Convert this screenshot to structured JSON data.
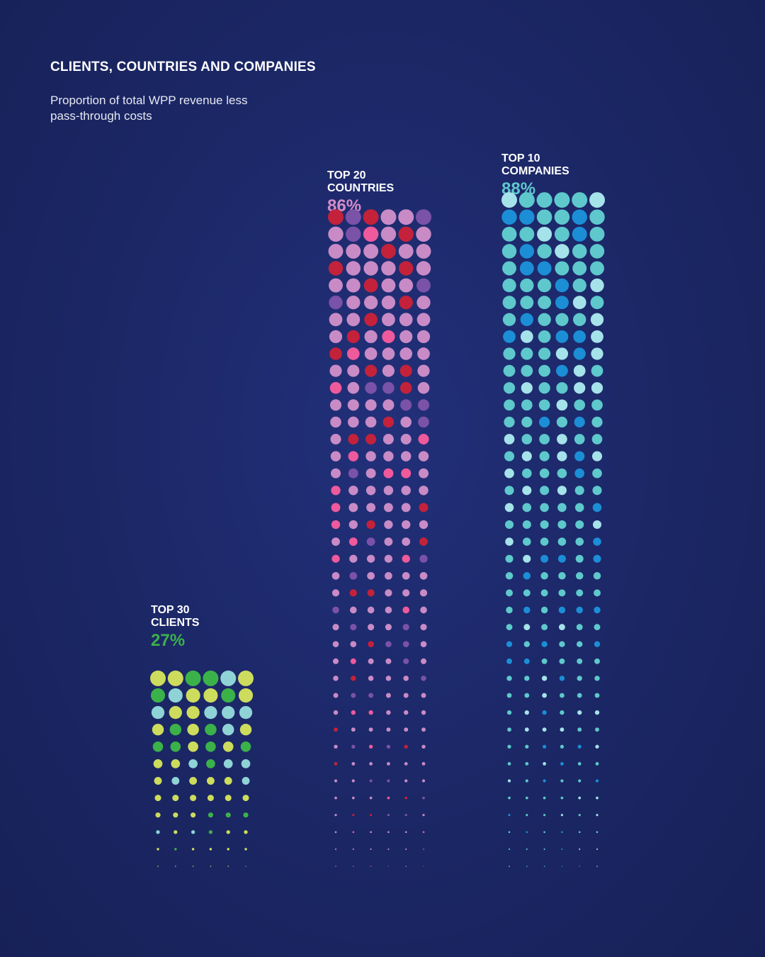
{
  "header": {
    "title": "CLIENTS, COUNTRIES AND COMPANIES",
    "subtitle": "Proportion of total WPP revenue less pass-through costs"
  },
  "chart_data": {
    "type": "bar",
    "title": "CLIENTS, COUNTRIES AND COMPANIES",
    "subtitle": "Proportion of total WPP revenue less pass-through costs",
    "categories": [
      "TOP 30 CLIENTS",
      "TOP 20 COUNTRIES",
      "TOP 10 COMPANIES"
    ],
    "values": [
      27,
      86,
      88
    ],
    "unit": "%",
    "bars": [
      {
        "label_line1": "TOP 30",
        "label_line2": "CLIENTS",
        "value_label": "27%",
        "value": 27,
        "color": "#3bb14a",
        "palette": [
          "#cddc5c",
          "#3bb14a",
          "#8fd3d6"
        ]
      },
      {
        "label_line1": "TOP 20",
        "label_line2": "COUNTRIES",
        "value_label": "86%",
        "value": 86,
        "color": "#d58bc6",
        "palette": [
          "#c88bc6",
          "#ee5a9c",
          "#c3223a",
          "#7a52a8"
        ]
      },
      {
        "label_line1": "TOP 10",
        "label_line2": "COMPANIES",
        "value_label": "88%",
        "value": 88,
        "color": "#5ec8cc",
        "palette": [
          "#5ec8cc",
          "#a5e2ea",
          "#1b8ed6"
        ]
      }
    ]
  }
}
